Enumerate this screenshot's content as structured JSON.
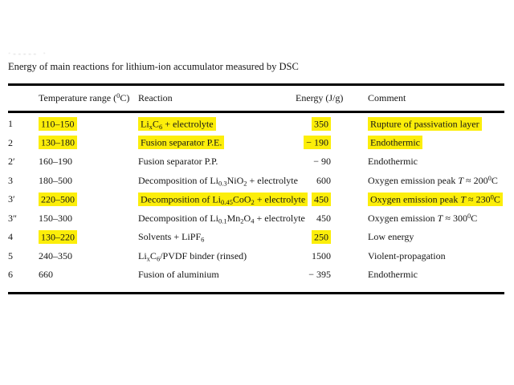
{
  "page": {
    "artifact_text": "·‐‐‐‐‐ ·",
    "title": "Energy of main reactions for lithium-ion accumulator measured by DSC"
  },
  "colors": {
    "highlight": "#fcee0a",
    "text": "#151515",
    "rule": "#000000",
    "background": "#ffffff"
  },
  "table": {
    "headers": {
      "temperature": "Temperature range (^0^C)",
      "reaction": "Reaction",
      "energy": "Energy (J/g)",
      "comment": "Comment"
    },
    "rows": [
      {
        "label": "1",
        "temp": "110–150",
        "temp_hl": true,
        "reaction": "Li~x~C~6~ + electrolyte",
        "reaction_hl": true,
        "energy": "350",
        "energy_hl": true,
        "comment": "Rupture of passivation layer",
        "comment_hl": true
      },
      {
        "label": "2",
        "temp": "130–180",
        "temp_hl": true,
        "reaction": "Fusion separator P.E.",
        "reaction_hl": true,
        "energy": "− 190",
        "energy_hl": true,
        "comment": "Endothermic",
        "comment_hl": true
      },
      {
        "label": "2′",
        "temp": "160–190",
        "temp_hl": false,
        "reaction": "Fusion separator P.P.",
        "reaction_hl": false,
        "energy": "− 90",
        "energy_hl": false,
        "comment": "Endothermic",
        "comment_hl": false
      },
      {
        "label": "3",
        "temp": "180–500",
        "temp_hl": false,
        "reaction": "Decomposition of Li~0.3~NiO~2~ + electrolyte",
        "reaction_hl": false,
        "energy": "600",
        "energy_hl": false,
        "comment": "Oxygen emission peak *T* ≈ 200^0^C",
        "comment_hl": false
      },
      {
        "label": "3′",
        "temp": "220–500",
        "temp_hl": true,
        "reaction": "Decomposition of Li~0.45~CoO~2~ + electrolyte",
        "reaction_hl": true,
        "energy": "450",
        "energy_hl": true,
        "comment": "Oxygen emission peak *T* ≈ 230^0^C",
        "comment_hl": true
      },
      {
        "label": "3″",
        "temp": "150–300",
        "temp_hl": false,
        "reaction": "Decomposition of Li~0.1~Mn~2~O~4~ + electrolyte",
        "reaction_hl": false,
        "energy": "450",
        "energy_hl": false,
        "comment": "Oxygen emission *T* ≈ 300^0^C",
        "comment_hl": false
      },
      {
        "label": "4",
        "temp": "130–220",
        "temp_hl": true,
        "reaction": "Solvents + LiPF~6~",
        "reaction_hl": false,
        "energy": "250",
        "energy_hl": true,
        "comment": "Low energy",
        "comment_hl": false
      },
      {
        "label": "5",
        "temp": "240–350",
        "temp_hl": false,
        "reaction": "Li~x~C~6~/PVDF binder (rinsed)",
        "reaction_hl": false,
        "energy": "1500",
        "energy_hl": false,
        "comment": "Violent-propagation",
        "comment_hl": false
      },
      {
        "label": "6",
        "temp": "660",
        "temp_hl": false,
        "reaction": "Fusion of aluminium",
        "reaction_hl": false,
        "energy": "− 395",
        "energy_hl": false,
        "comment": "Endothermic",
        "comment_hl": false
      }
    ]
  }
}
